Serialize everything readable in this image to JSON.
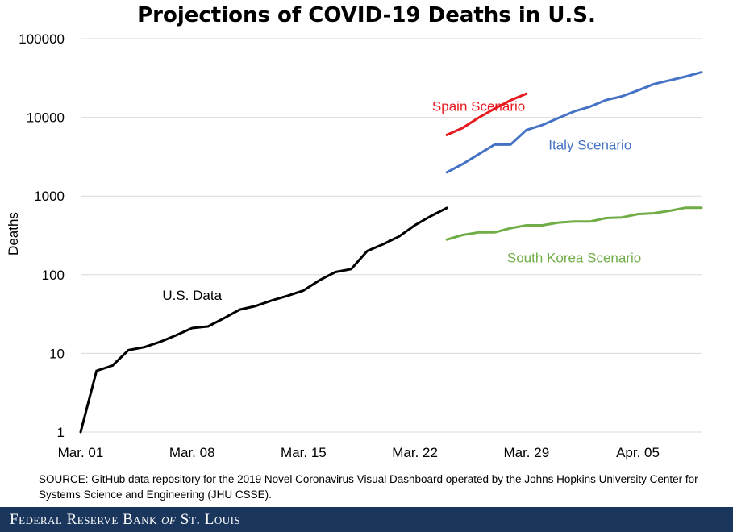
{
  "chart_data": {
    "type": "line",
    "title": "Projections of COVID-19 Deaths in U.S.",
    "xlabel": "",
    "ylabel": "Deaths",
    "y_scale": "log",
    "ylim": [
      1,
      100000
    ],
    "yticks": [
      "1",
      "10",
      "100",
      "1000",
      "10000",
      "100000"
    ],
    "xlim": [
      "2020-03-01",
      "2020-04-09"
    ],
    "xticks": [
      "Mar. 01",
      "Mar. 08",
      "Mar. 15",
      "Mar. 22",
      "Mar. 29",
      "Apr. 05"
    ],
    "grid": true,
    "series": [
      {
        "name": "U.S. Data",
        "color": "#000000",
        "x": [
          "2020-03-01",
          "2020-03-02",
          "2020-03-03",
          "2020-03-04",
          "2020-03-05",
          "2020-03-06",
          "2020-03-07",
          "2020-03-08",
          "2020-03-09",
          "2020-03-10",
          "2020-03-11",
          "2020-03-12",
          "2020-03-13",
          "2020-03-14",
          "2020-03-15",
          "2020-03-16",
          "2020-03-17",
          "2020-03-18",
          "2020-03-19",
          "2020-03-20",
          "2020-03-21",
          "2020-03-22",
          "2020-03-23",
          "2020-03-24"
        ],
        "y": [
          1,
          6,
          7,
          11,
          12,
          14,
          17,
          21,
          22,
          28,
          36,
          40,
          47,
          54,
          63,
          85,
          108,
          118,
          200,
          244,
          307,
          427,
          557,
          706
        ]
      },
      {
        "name": "Spain Scenario",
        "color": "#e8191e",
        "x": [
          "2020-03-24",
          "2020-03-25",
          "2020-03-26",
          "2020-03-27",
          "2020-03-28",
          "2020-03-29"
        ],
        "y": [
          5982,
          7340,
          9900,
          12900,
          16500,
          20000
        ]
      },
      {
        "name": "Italy Scenario",
        "color": "#4472c4",
        "x": [
          "2020-03-24",
          "2020-03-25",
          "2020-03-26",
          "2020-03-27",
          "2020-03-28",
          "2020-03-29",
          "2020-03-30",
          "2020-03-31",
          "2020-04-01",
          "2020-04-02",
          "2020-04-03",
          "2020-04-04",
          "2020-04-05",
          "2020-04-06",
          "2020-04-07",
          "2020-04-08",
          "2020-04-09"
        ],
        "y": [
          2000,
          2550,
          3400,
          4500,
          4500,
          6900,
          8000,
          9800,
          11900,
          13700,
          16600,
          18500,
          22000,
          26500,
          29500,
          33000,
          37500
        ]
      },
      {
        "name": "South Korea Scenario",
        "color": "#70ad47",
        "x": [
          "2020-03-24",
          "2020-03-25",
          "2020-03-26",
          "2020-03-27",
          "2020-03-28",
          "2020-03-29",
          "2020-03-30",
          "2020-03-31",
          "2020-04-01",
          "2020-04-02",
          "2020-04-03",
          "2020-04-04",
          "2020-04-05",
          "2020-04-06",
          "2020-04-07",
          "2020-04-08",
          "2020-04-09"
        ],
        "y": [
          280,
          320,
          345,
          345,
          390,
          425,
          425,
          460,
          475,
          475,
          525,
          535,
          590,
          605,
          650,
          710,
          710
        ]
      }
    ]
  },
  "source_note": "SOURCE: GitHub data repository for the 2019 Novel Coronavirus Visual Dashboard operated by the Johns Hopkins University Center for Systems Science and Engineering (JHU CSSE).",
  "footer": {
    "text_main": "Federal Reserve Bank ",
    "text_of": "of",
    "text_end": " St. Louis",
    "bg_color": "#1b365d"
  }
}
